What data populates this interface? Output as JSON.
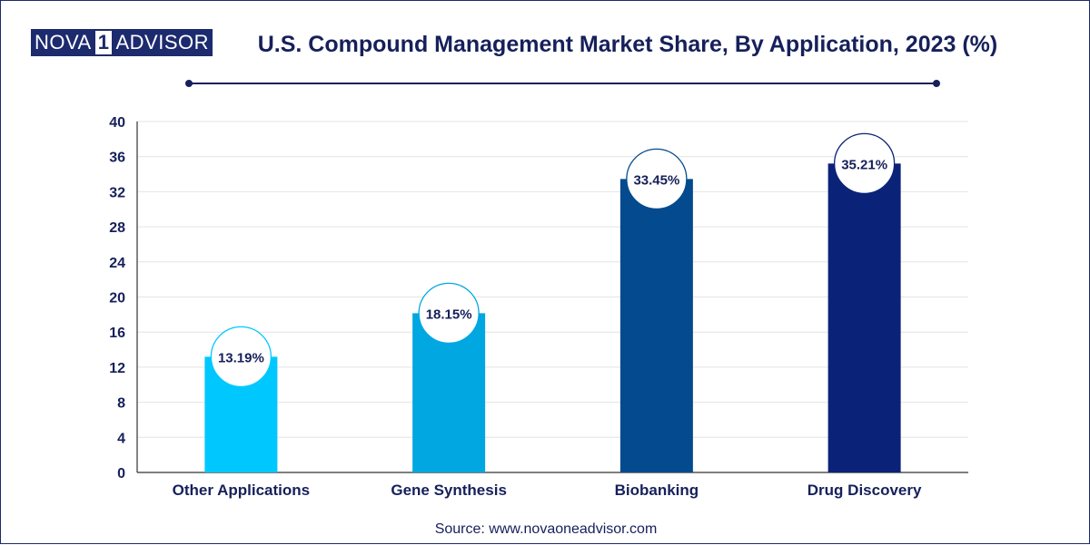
{
  "brand": {
    "logo_part1": "NOVA",
    "logo_part2": "1",
    "logo_part3": "ADVISOR",
    "color": "#1c2a6e"
  },
  "header": {
    "title": "U.S. Compound Management Market Share, By Application, 2023 (%)"
  },
  "footer": {
    "source": "Source: www.novaoneadvisor.com"
  },
  "chart_data": {
    "type": "bar",
    "title": "U.S. Compound Management Market Share, By Application, 2023 (%)",
    "categories": [
      "Other Applications",
      "Gene Synthesis",
      "Biobanking",
      "Drug Discovery"
    ],
    "values": [
      13.19,
      18.15,
      33.45,
      35.21
    ],
    "data_labels": [
      "13.19%",
      "18.15%",
      "33.45%",
      "35.21%"
    ],
    "colors": [
      "#00c8ff",
      "#00a7e1",
      "#034b8e",
      "#0a2378"
    ],
    "ylim": [
      0,
      40
    ],
    "yticks": [
      0,
      4,
      8,
      12,
      16,
      20,
      24,
      28,
      32,
      36,
      40
    ],
    "grid": true,
    "xlabel": "",
    "ylabel": ""
  }
}
